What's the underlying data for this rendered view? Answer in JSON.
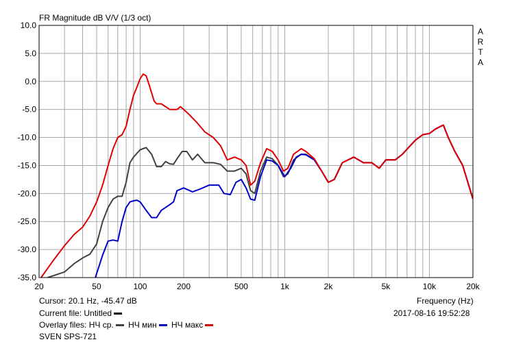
{
  "chart_data": {
    "type": "line",
    "title": "FR Magnitude dB V/V (1/3 oct)",
    "xlabel": "Frequency (Hz)",
    "ylabel": "",
    "x_scale": "log",
    "xlim": [
      20,
      20000
    ],
    "ylim": [
      -35,
      10
    ],
    "grid": true,
    "x_tick_labels": [
      {
        "value": 20,
        "label": "20"
      },
      {
        "value": 50,
        "label": "50"
      },
      {
        "value": 100,
        "label": "100"
      },
      {
        "value": 200,
        "label": "200"
      },
      {
        "value": 500,
        "label": "500"
      },
      {
        "value": 1000,
        "label": "1k"
      },
      {
        "value": 2000,
        "label": "2k"
      },
      {
        "value": 5000,
        "label": "5k"
      },
      {
        "value": 10000,
        "label": "10k"
      },
      {
        "value": 20000,
        "label": "20k"
      }
    ],
    "y_ticks": [
      10,
      5,
      0,
      -5,
      -10,
      -15,
      -20,
      -25,
      -30,
      -35
    ],
    "y_tick_labels": [
      "10.0",
      "5.0",
      "0.0",
      "-5.0",
      "-10.0",
      "-15.0",
      "-20.0",
      "-25.0",
      "-30.0",
      "-35.0"
    ],
    "watermark": [
      "A",
      "R",
      "T",
      "A"
    ],
    "series": [
      {
        "name": "НЧ ср.",
        "color": "#404040",
        "points": [
          [
            20,
            -35.5
          ],
          [
            30,
            -34
          ],
          [
            35,
            -32.5
          ],
          [
            40,
            -31.5
          ],
          [
            45,
            -30.8
          ],
          [
            50,
            -29
          ],
          [
            55,
            -25
          ],
          [
            60,
            -22.5
          ],
          [
            65,
            -21
          ],
          [
            70,
            -20.5
          ],
          [
            75,
            -20.5
          ],
          [
            80,
            -18
          ],
          [
            85,
            -14.5
          ],
          [
            90,
            -13.5
          ],
          [
            100,
            -12.2
          ],
          [
            110,
            -11.8
          ],
          [
            120,
            -13
          ],
          [
            130,
            -15.2
          ],
          [
            140,
            -15.2
          ],
          [
            150,
            -14.3
          ],
          [
            160,
            -14.7
          ],
          [
            170,
            -14.8
          ],
          [
            180,
            -13.8
          ],
          [
            195,
            -12.5
          ],
          [
            210,
            -12.5
          ],
          [
            230,
            -14
          ],
          [
            250,
            -13
          ],
          [
            280,
            -14.5
          ],
          [
            320,
            -14.5
          ],
          [
            360,
            -14.8
          ],
          [
            400,
            -16
          ],
          [
            450,
            -16
          ],
          [
            500,
            -15.5
          ],
          [
            540,
            -16.5
          ],
          [
            580,
            -19.5
          ],
          [
            620,
            -20
          ],
          [
            680,
            -16
          ],
          [
            750,
            -13.5
          ],
          [
            820,
            -13.8
          ],
          [
            900,
            -15
          ],
          [
            980,
            -17
          ],
          [
            1050,
            -16.5
          ],
          [
            1150,
            -14
          ],
          [
            1300,
            -13
          ],
          [
            1400,
            -13
          ],
          [
            1600,
            -14
          ],
          [
            1800,
            -16
          ],
          [
            2000,
            -18
          ],
          [
            2200,
            -17.5
          ],
          [
            2500,
            -14.5
          ],
          [
            3000,
            -13.5
          ],
          [
            3500,
            -14.5
          ],
          [
            4000,
            -14.5
          ],
          [
            4500,
            -15.5
          ],
          [
            5000,
            -14
          ],
          [
            5800,
            -14
          ],
          [
            6500,
            -13
          ],
          [
            8000,
            -10.5
          ],
          [
            9000,
            -9.5
          ],
          [
            10000,
            -9.3
          ],
          [
            11000,
            -8.5
          ],
          [
            12000,
            -8
          ],
          [
            12500,
            -7.8
          ],
          [
            13500,
            -10
          ],
          [
            15000,
            -12.5
          ],
          [
            17000,
            -15
          ],
          [
            20000,
            -21
          ]
        ]
      },
      {
        "name": "НЧ мин",
        "color": "#0000cc",
        "points": [
          [
            49,
            -35
          ],
          [
            55,
            -31
          ],
          [
            60,
            -28.5
          ],
          [
            65,
            -28.3
          ],
          [
            70,
            -28.5
          ],
          [
            75,
            -25
          ],
          [
            80,
            -22.5
          ],
          [
            85,
            -21.5
          ],
          [
            90,
            -21.3
          ],
          [
            95,
            -21.2
          ],
          [
            100,
            -21.5
          ],
          [
            110,
            -23
          ],
          [
            120,
            -24.3
          ],
          [
            130,
            -24.3
          ],
          [
            140,
            -23
          ],
          [
            160,
            -22
          ],
          [
            170,
            -21.5
          ],
          [
            180,
            -19.5
          ],
          [
            200,
            -19
          ],
          [
            230,
            -19.7
          ],
          [
            260,
            -19.2
          ],
          [
            300,
            -18.5
          ],
          [
            320,
            -18.5
          ],
          [
            350,
            -18.5
          ],
          [
            380,
            -20
          ],
          [
            420,
            -20.2
          ],
          [
            460,
            -18
          ],
          [
            500,
            -17.5
          ],
          [
            540,
            -19
          ],
          [
            580,
            -21
          ],
          [
            620,
            -21.2
          ],
          [
            680,
            -17
          ],
          [
            750,
            -14
          ],
          [
            820,
            -14.2
          ],
          [
            900,
            -15
          ],
          [
            950,
            -16
          ],
          [
            1000,
            -17
          ],
          [
            1100,
            -15.5
          ],
          [
            1200,
            -13.5
          ],
          [
            1300,
            -13
          ],
          [
            1400,
            -13.1
          ],
          [
            1600,
            -14
          ],
          [
            1800,
            -16
          ],
          [
            2000,
            -18
          ],
          [
            2200,
            -17.5
          ],
          [
            2500,
            -14.5
          ],
          [
            3000,
            -13.5
          ],
          [
            3500,
            -14.5
          ],
          [
            4000,
            -14.5
          ],
          [
            4500,
            -15.5
          ],
          [
            5000,
            -14
          ],
          [
            5800,
            -14
          ],
          [
            6500,
            -13
          ],
          [
            8000,
            -10.5
          ],
          [
            9000,
            -9.5
          ],
          [
            10000,
            -9.3
          ],
          [
            11000,
            -8.5
          ],
          [
            12000,
            -8
          ],
          [
            12500,
            -7.8
          ],
          [
            13500,
            -10
          ],
          [
            15000,
            -12.5
          ],
          [
            17000,
            -15
          ],
          [
            20000,
            -21
          ]
        ]
      },
      {
        "name": "НЧ макс",
        "color": "#e00000",
        "points": [
          [
            20,
            -35.5
          ],
          [
            25,
            -32
          ],
          [
            30,
            -29.3
          ],
          [
            35,
            -27.3
          ],
          [
            40,
            -26
          ],
          [
            45,
            -24
          ],
          [
            50,
            -21.5
          ],
          [
            55,
            -18.5
          ],
          [
            60,
            -15
          ],
          [
            65,
            -12
          ],
          [
            70,
            -10
          ],
          [
            75,
            -9.5
          ],
          [
            80,
            -8
          ],
          [
            85,
            -5
          ],
          [
            90,
            -2.5
          ],
          [
            95,
            -1
          ],
          [
            100,
            0.5
          ],
          [
            105,
            1.3
          ],
          [
            110,
            1
          ],
          [
            115,
            -0.5
          ],
          [
            125,
            -3.5
          ],
          [
            130,
            -4
          ],
          [
            140,
            -4
          ],
          [
            150,
            -4.5
          ],
          [
            160,
            -5
          ],
          [
            170,
            -5
          ],
          [
            180,
            -5
          ],
          [
            190,
            -4.5
          ],
          [
            200,
            -5
          ],
          [
            220,
            -6
          ],
          [
            250,
            -7.5
          ],
          [
            280,
            -9
          ],
          [
            320,
            -10
          ],
          [
            360,
            -11.5
          ],
          [
            400,
            -14
          ],
          [
            450,
            -13.5
          ],
          [
            500,
            -14
          ],
          [
            540,
            -15
          ],
          [
            580,
            -18.5
          ],
          [
            620,
            -17.8
          ],
          [
            680,
            -14.5
          ],
          [
            750,
            -12
          ],
          [
            820,
            -12.5
          ],
          [
            900,
            -14
          ],
          [
            980,
            -16
          ],
          [
            1050,
            -15.5
          ],
          [
            1150,
            -13
          ],
          [
            1300,
            -12
          ],
          [
            1400,
            -12.5
          ],
          [
            1600,
            -13.8
          ],
          [
            1800,
            -16
          ],
          [
            2000,
            -18
          ],
          [
            2200,
            -17.5
          ],
          [
            2500,
            -14.5
          ],
          [
            3000,
            -13.5
          ],
          [
            3500,
            -14.5
          ],
          [
            4000,
            -14.5
          ],
          [
            4500,
            -15.5
          ],
          [
            5000,
            -14
          ],
          [
            5800,
            -14
          ],
          [
            6500,
            -13
          ],
          [
            8000,
            -10.5
          ],
          [
            9000,
            -9.5
          ],
          [
            10000,
            -9.3
          ],
          [
            11000,
            -8.5
          ],
          [
            12000,
            -8
          ],
          [
            12500,
            -7.8
          ],
          [
            13500,
            -10
          ],
          [
            15000,
            -12.5
          ],
          [
            17000,
            -15
          ],
          [
            20000,
            -21
          ]
        ]
      }
    ]
  },
  "info": {
    "cursor": "Cursor: 20.1 Hz, -45.47 dB",
    "frequency_label": "Frequency (Hz)",
    "current_file": "Current file: Untitled",
    "timestamp": "2017-08-16  19:52:28",
    "overlay_prefix": "Overlay files:",
    "overlays": [
      {
        "label": "НЧ ср.",
        "color": "#404040"
      },
      {
        "label": "НЧ мин",
        "color": "#0000cc"
      },
      {
        "label": "НЧ макс",
        "color": "#e00000"
      }
    ],
    "footer": "SVEN SPS-721"
  }
}
